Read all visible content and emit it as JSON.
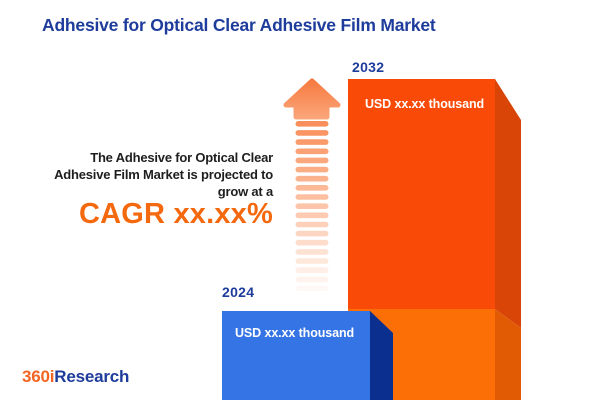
{
  "header": {
    "title": "Adhesive for Optical Clear Adhesive Film Market"
  },
  "summary": {
    "lines": [
      "The Adhesive for Optical Clear",
      "Adhesive Film Market is projected to",
      "grow at a"
    ],
    "cagr": "CAGR xx.xx%"
  },
  "bars": {
    "b2024": {
      "year": "2024",
      "value": "USD xx.xx thousand"
    },
    "b2032": {
      "year": "2032",
      "value": "USD xx.xx thousand"
    }
  },
  "chart_data": {
    "type": "bar",
    "orientation": "vertical",
    "categories": [
      "2024",
      "2032"
    ],
    "values_text": [
      "USD xx.xx thousand",
      "USD xx.xx thousand"
    ],
    "relative_heights": [
      0.28,
      1.0
    ],
    "unit": "USD thousand",
    "title": "Adhesive for Optical Clear Adhesive Film Market",
    "annotation": "The Adhesive for Optical Clear Adhesive Film Market is projected to grow at a CAGR xx.xx%",
    "growth_label": "CAGR xx.xx%",
    "value_axis": "hidden",
    "grid": false,
    "legend": false,
    "series_colors": [
      "#3574e4",
      "#f94b07"
    ]
  },
  "footer": {
    "logo_prefix": "360i",
    "logo_suffix": "Research"
  },
  "colors": {
    "title_blue": "#1e3c9b",
    "text_dark": "#1e1e20",
    "cagr_orange": "#f5690e",
    "bar_2024_face": "#3574e4",
    "bar_2024_side": "#0b2f8e",
    "bar_2032_face_top": "#f94b07",
    "bar_2032_face_bottom": "#fb6f06",
    "bar_2032_side_top": "#d94507",
    "bar_2032_side_bottom": "#e05b04",
    "arrow_head_top": "#f67a40",
    "arrow_head_bottom": "#fba87d",
    "arrow_stripe": "#f98a52",
    "logo_orange": "#f26522",
    "logo_blue": "#1e3c9b"
  }
}
